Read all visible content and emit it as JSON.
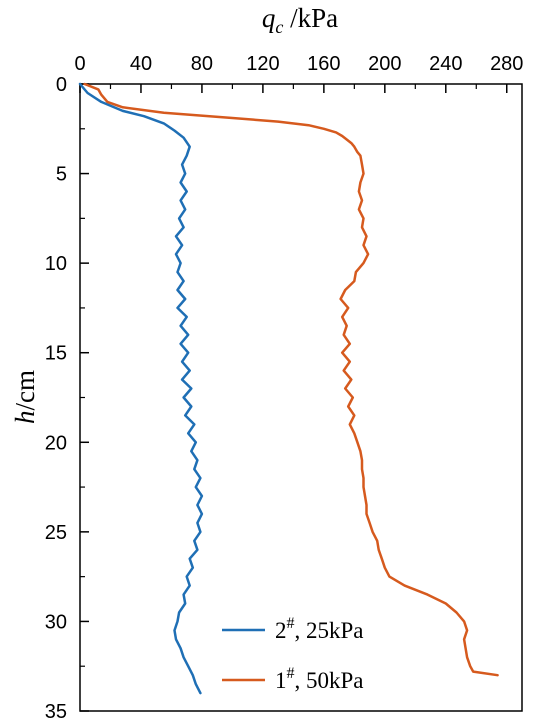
{
  "chart_data": {
    "type": "line",
    "title": "",
    "xlabel": {
      "var": "q",
      "sub": "c",
      "unit": " /kPa"
    },
    "ylabel": {
      "var": "h",
      "unit": "/cm"
    },
    "x_axis_position": "top",
    "y_inverted": true,
    "xlim": [
      0,
      290
    ],
    "ylim": [
      0,
      35
    ],
    "xticks": [
      "0",
      "40",
      "80",
      "120",
      "160",
      "200",
      "240",
      "280"
    ],
    "yticks": [
      "0",
      "5",
      "10",
      "15",
      "20",
      "25",
      "30",
      "35"
    ],
    "grid": false,
    "legend_position": "bottom-right",
    "series": [
      {
        "name_main": "2",
        "name_sup": "#",
        "name_rest": ", 25kPa",
        "color": "#1f6fb5",
        "depth": [
          0,
          0.5,
          1.0,
          1.5,
          1.8,
          2.2,
          2.6,
          3.0,
          3.5,
          4.0,
          4.5,
          5.0,
          5.5,
          6.0,
          6.5,
          7.0,
          7.5,
          8.0,
          8.5,
          9.0,
          9.5,
          10.0,
          10.5,
          11.0,
          11.5,
          12.0,
          12.5,
          13.0,
          13.5,
          14.0,
          14.5,
          15.0,
          15.5,
          16.0,
          16.5,
          17.0,
          17.5,
          18.0,
          18.5,
          19.0,
          19.5,
          20.0,
          20.5,
          21.0,
          21.5,
          22.0,
          22.5,
          23.0,
          23.5,
          24.0,
          24.5,
          25.0,
          25.5,
          26.0,
          26.5,
          27.0,
          27.5,
          28.0,
          28.5,
          29.0,
          29.5,
          30.0,
          30.5,
          31.0,
          31.5,
          32.0,
          32.5,
          33.0,
          33.5,
          34.0
        ],
        "qc": [
          0,
          5,
          14,
          28,
          42,
          55,
          62,
          68,
          72,
          70,
          67,
          69,
          66,
          70,
          66,
          69,
          65,
          68,
          63,
          67,
          63,
          66,
          64,
          68,
          64,
          69,
          64,
          70,
          66,
          71,
          66,
          71,
          67,
          72,
          67,
          73,
          68,
          73,
          69,
          75,
          71,
          76,
          73,
          77,
          75,
          79,
          76,
          80,
          77,
          80,
          77,
          79,
          75,
          77,
          72,
          74,
          70,
          72,
          68,
          69,
          65,
          64,
          62,
          63,
          66,
          68,
          71,
          74,
          76,
          79
        ]
      },
      {
        "name_main": "1",
        "name_sup": "#",
        "name_rest": ", 50kPa",
        "color": "#d65a1e",
        "depth": [
          0,
          0.3,
          0.6,
          1.0,
          1.3,
          1.6,
          1.9,
          2.1,
          2.3,
          2.5,
          2.7,
          2.9,
          3.1,
          3.3,
          3.5,
          3.8,
          4.0,
          4.5,
          5.0,
          5.5,
          6.0,
          6.5,
          7.0,
          7.5,
          8.0,
          8.5,
          9.0,
          9.5,
          10.0,
          10.5,
          11.0,
          11.5,
          12.0,
          12.5,
          13.0,
          13.5,
          14.0,
          14.5,
          15.0,
          15.5,
          16.0,
          16.5,
          17.0,
          17.5,
          18.0,
          18.5,
          19.0,
          19.5,
          20.0,
          20.5,
          21.0,
          21.5,
          22.0,
          22.5,
          23.0,
          23.5,
          24.0,
          24.5,
          25.0,
          25.5,
          26.0,
          26.5,
          27.0,
          27.5,
          28.0,
          28.5,
          29.0,
          29.5,
          30.0,
          30.5,
          31.0,
          31.5,
          32.0,
          32.5,
          32.8,
          33.0
        ],
        "qc": [
          3,
          12,
          14,
          18,
          28,
          55,
          100,
          130,
          150,
          160,
          168,
          172,
          175,
          178,
          180,
          182,
          184,
          185,
          186,
          184,
          183,
          185,
          183,
          186,
          185,
          188,
          186,
          189,
          186,
          181,
          180,
          174,
          171,
          176,
          172,
          175,
          173,
          177,
          172,
          177,
          173,
          178,
          174,
          179,
          176,
          180,
          177,
          180,
          182,
          184,
          185,
          185,
          186,
          186,
          187,
          188,
          188,
          190,
          192,
          195,
          196,
          198,
          200,
          203,
          213,
          228,
          240,
          247,
          252,
          254,
          252,
          253,
          254,
          256,
          258,
          274
        ]
      }
    ]
  }
}
